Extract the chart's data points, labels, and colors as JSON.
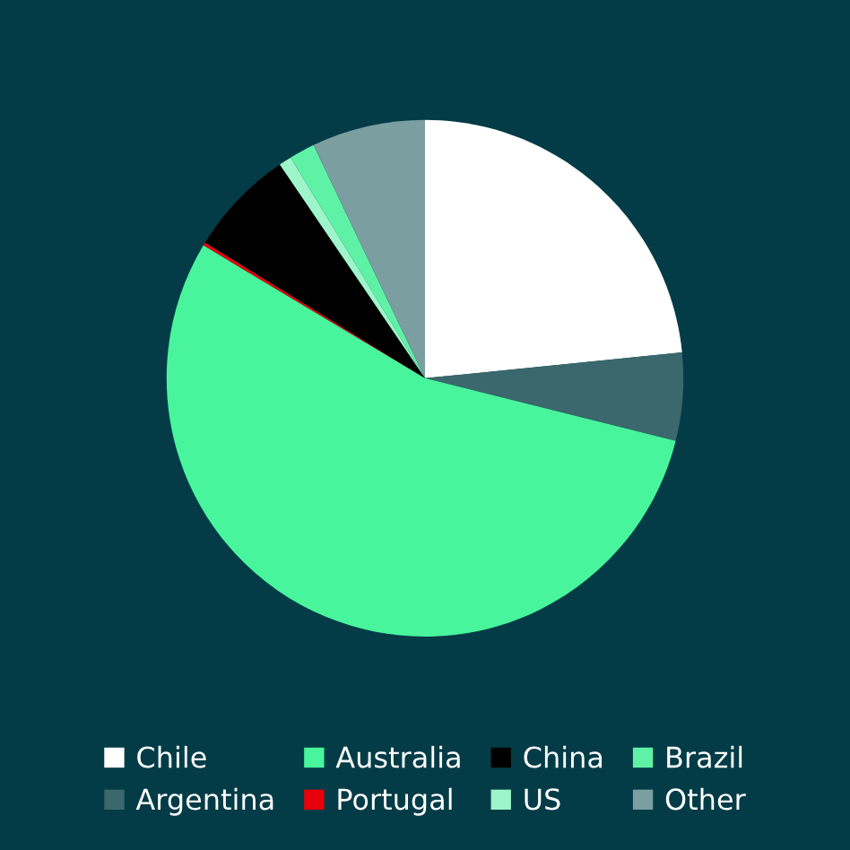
{
  "chart_data": {
    "type": "pie",
    "categories": [
      "Chile",
      "Argentina",
      "Australia",
      "Portugal",
      "China",
      "US",
      "Brazil",
      "Other"
    ],
    "values": [
      23.4,
      5.5,
      54.7,
      0.2,
      6.7,
      0.8,
      1.6,
      7.1
    ],
    "colors": [
      "#ffffff",
      "#3a686c",
      "#48f59c",
      "#e8000b",
      "#000000",
      "#9ef5c9",
      "#5ff2a6",
      "#7b9ea1"
    ],
    "legend": "bottom"
  }
}
